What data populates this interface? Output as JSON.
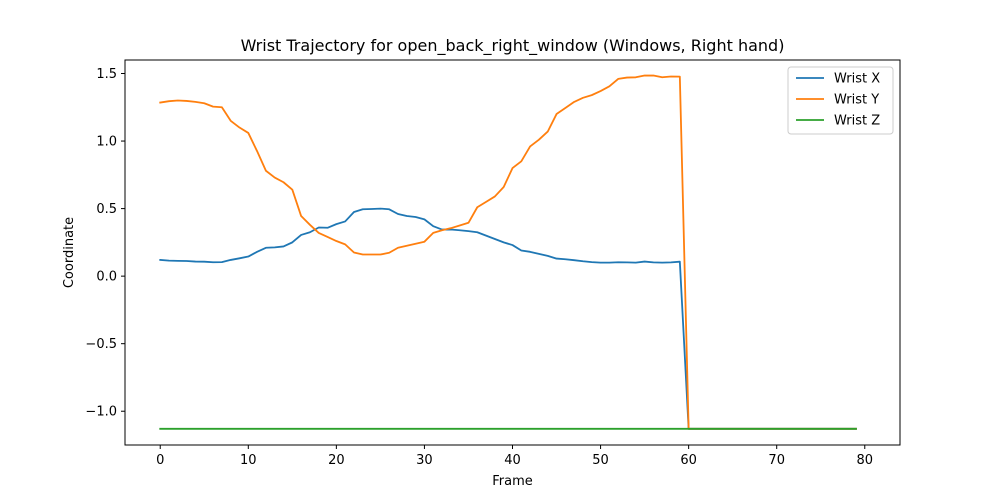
{
  "chart_data": {
    "type": "line",
    "title": "Wrist Trajectory for open_back_right_window (Windows, Right hand)",
    "xlabel": "Frame",
    "ylabel": "Coordinate",
    "xlim": [
      -4,
      84
    ],
    "ylim": [
      -1.25,
      1.6
    ],
    "xticks": [
      0,
      10,
      20,
      30,
      40,
      50,
      60,
      70,
      80
    ],
    "yticks": [
      -1.0,
      -0.5,
      0.0,
      0.5,
      1.0,
      1.5
    ],
    "ytick_labels": [
      "−1.0",
      "−0.5",
      "0.0",
      "0.5",
      "1.0",
      "1.5"
    ],
    "grid": false,
    "legend_position": "top-right",
    "x": [
      0,
      1,
      2,
      3,
      4,
      5,
      6,
      7,
      8,
      9,
      10,
      11,
      12,
      13,
      14,
      15,
      16,
      17,
      18,
      19,
      20,
      21,
      22,
      23,
      24,
      25,
      26,
      27,
      28,
      29,
      30,
      31,
      32,
      33,
      34,
      35,
      36,
      37,
      38,
      39,
      40,
      41,
      42,
      43,
      44,
      45,
      46,
      47,
      48,
      49,
      50,
      51,
      52,
      53,
      54,
      55,
      56,
      57,
      58,
      59,
      60,
      61,
      62,
      63,
      64,
      65,
      66,
      67,
      68,
      69,
      70,
      71,
      72,
      73,
      74,
      75,
      76,
      77,
      78,
      79
    ],
    "series": [
      {
        "name": "Wrist X",
        "color": "#1f77b4",
        "values": [
          0.12,
          0.115,
          0.113,
          0.112,
          0.108,
          0.107,
          0.103,
          0.104,
          0.12,
          0.132,
          0.145,
          0.18,
          0.21,
          0.213,
          0.22,
          0.25,
          0.305,
          0.325,
          0.36,
          0.358,
          0.385,
          0.405,
          0.475,
          0.495,
          0.497,
          0.5,
          0.495,
          0.46,
          0.445,
          0.438,
          0.42,
          0.37,
          0.345,
          0.345,
          0.34,
          0.333,
          0.325,
          0.3,
          0.275,
          0.25,
          0.23,
          0.19,
          0.18,
          0.165,
          0.15,
          0.13,
          0.125,
          0.118,
          0.11,
          0.104,
          0.1,
          0.1,
          0.103,
          0.102,
          0.1,
          0.108,
          0.102,
          0.1,
          0.102,
          0.107,
          -1.13,
          -1.13,
          -1.13,
          -1.13,
          -1.13,
          -1.13,
          -1.13,
          -1.13,
          -1.13,
          -1.13,
          -1.13,
          -1.13,
          -1.13,
          -1.13,
          -1.13,
          -1.13,
          -1.13,
          -1.13,
          -1.13,
          -1.13
        ]
      },
      {
        "name": "Wrist Y",
        "color": "#ff7f0e",
        "values": [
          1.285,
          1.295,
          1.3,
          1.297,
          1.29,
          1.28,
          1.255,
          1.25,
          1.15,
          1.1,
          1.06,
          0.925,
          0.78,
          0.73,
          0.695,
          0.64,
          0.445,
          0.38,
          0.32,
          0.29,
          0.26,
          0.235,
          0.175,
          0.16,
          0.16,
          0.16,
          0.173,
          0.21,
          0.225,
          0.24,
          0.255,
          0.32,
          0.34,
          0.355,
          0.375,
          0.395,
          0.51,
          0.55,
          0.59,
          0.66,
          0.8,
          0.85,
          0.96,
          1.01,
          1.07,
          1.2,
          1.245,
          1.29,
          1.32,
          1.34,
          1.37,
          1.405,
          1.46,
          1.47,
          1.472,
          1.485,
          1.485,
          1.472,
          1.478,
          1.477,
          -1.13,
          -1.13,
          -1.13,
          -1.13,
          -1.13,
          -1.13,
          -1.13,
          -1.13,
          -1.13,
          -1.13,
          -1.13,
          -1.13,
          -1.13,
          -1.13,
          -1.13,
          -1.13,
          -1.13,
          -1.13,
          -1.13,
          -1.13
        ]
      },
      {
        "name": "Wrist Z",
        "color": "#2ca02c",
        "values": [
          -1.13,
          -1.13,
          -1.13,
          -1.13,
          -1.13,
          -1.13,
          -1.13,
          -1.13,
          -1.13,
          -1.13,
          -1.13,
          -1.13,
          -1.13,
          -1.13,
          -1.13,
          -1.13,
          -1.13,
          -1.13,
          -1.13,
          -1.13,
          -1.13,
          -1.13,
          -1.13,
          -1.13,
          -1.13,
          -1.13,
          -1.13,
          -1.13,
          -1.13,
          -1.13,
          -1.13,
          -1.13,
          -1.13,
          -1.13,
          -1.13,
          -1.13,
          -1.13,
          -1.13,
          -1.13,
          -1.13,
          -1.13,
          -1.13,
          -1.13,
          -1.13,
          -1.13,
          -1.13,
          -1.13,
          -1.13,
          -1.13,
          -1.13,
          -1.13,
          -1.13,
          -1.13,
          -1.13,
          -1.13,
          -1.13,
          -1.13,
          -1.13,
          -1.13,
          -1.13,
          -1.13,
          -1.13,
          -1.13,
          -1.13,
          -1.13,
          -1.13,
          -1.13,
          -1.13,
          -1.13,
          -1.13,
          -1.13,
          -1.13,
          -1.13,
          -1.13,
          -1.13,
          -1.13,
          -1.13,
          -1.13,
          -1.13,
          -1.13
        ]
      }
    ]
  }
}
